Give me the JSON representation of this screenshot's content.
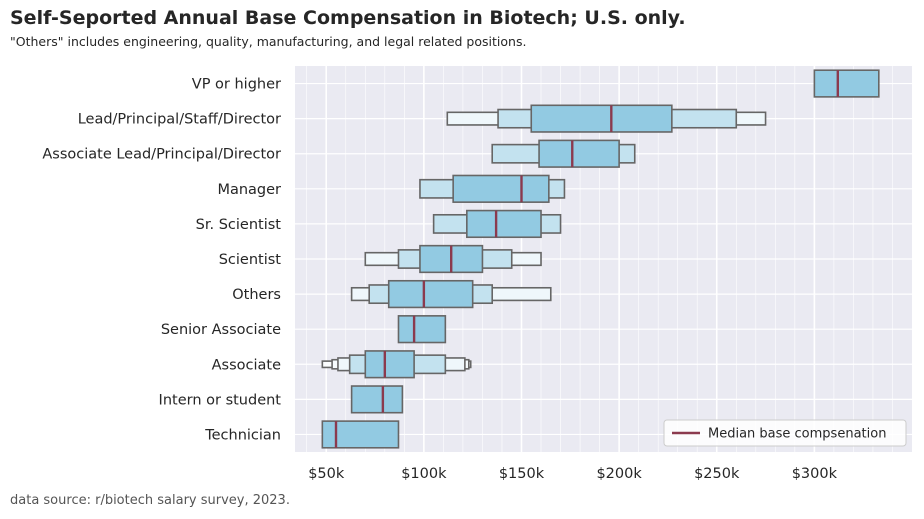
{
  "chart_data": {
    "type": "boxen",
    "title": "Self-Seported Annual Base Compensation in Biotech; U.S. only.",
    "subtitle": "\"Others\" includes engineering, quality, manufacturing, and legal related positions.",
    "source": "data source: r/biotech salary survey, 2023.",
    "xlabel": "",
    "ylabel": "",
    "xlim": [
      34000,
      350000
    ],
    "xticks": [
      50000,
      100000,
      150000,
      200000,
      250000,
      300000
    ],
    "xtick_labels": [
      "$50k",
      "$100k",
      "$150k",
      "$200k",
      "$250k",
      "$300k"
    ],
    "grid": true,
    "legend": {
      "label": "Median base compsenation",
      "position": "lower-right"
    },
    "colors": {
      "background": "#eaeaf2",
      "grid": "#ffffff",
      "box": "#92cae2",
      "box_edge": "#666666",
      "median": "#8b3a4e",
      "text": "#262626"
    },
    "categories": [
      "VP or higher",
      "Lead/Principal/Staff/Director",
      "Associate Lead/Principal/Director",
      "Manager",
      "Sr. Scientist",
      "Scientist",
      "Others",
      "Senior Associate",
      "Associate",
      "Intern or student",
      "Technician"
    ],
    "series": [
      {
        "name": "VP or higher",
        "median": 312000,
        "boxes": [
          [
            300000,
            333000
          ]
        ]
      },
      {
        "name": "Lead/Principal/Staff/Director",
        "median": 196000,
        "boxes": [
          [
            155000,
            227000
          ],
          [
            138000,
            260000
          ],
          [
            112000,
            275000
          ]
        ]
      },
      {
        "name": "Associate Lead/Principal/Director",
        "median": 176000,
        "boxes": [
          [
            159000,
            200000
          ],
          [
            135000,
            208000
          ]
        ]
      },
      {
        "name": "Manager",
        "median": 150000,
        "boxes": [
          [
            115000,
            164000
          ],
          [
            98000,
            172000
          ]
        ]
      },
      {
        "name": "Sr. Scientist",
        "median": 137000,
        "boxes": [
          [
            122000,
            160000
          ],
          [
            105000,
            170000
          ]
        ]
      },
      {
        "name": "Scientist",
        "median": 114000,
        "boxes": [
          [
            98000,
            130000
          ],
          [
            87000,
            145000
          ],
          [
            70000,
            160000
          ]
        ]
      },
      {
        "name": "Others",
        "median": 100000,
        "boxes": [
          [
            82000,
            125000
          ],
          [
            72000,
            135000
          ],
          [
            63000,
            165000
          ]
        ]
      },
      {
        "name": "Senior Associate",
        "median": 95000,
        "boxes": [
          [
            87000,
            111000
          ]
        ]
      },
      {
        "name": "Associate",
        "median": 80000,
        "boxes": [
          [
            70000,
            95000
          ],
          [
            62000,
            111000
          ],
          [
            56000,
            121000
          ],
          [
            53000,
            123000
          ],
          [
            48000,
            124000
          ]
        ]
      },
      {
        "name": "Intern or student",
        "median": 79000,
        "boxes": [
          [
            63000,
            89000
          ]
        ]
      },
      {
        "name": "Technician",
        "median": 55000,
        "boxes": [
          [
            48000,
            87000
          ]
        ]
      }
    ]
  }
}
